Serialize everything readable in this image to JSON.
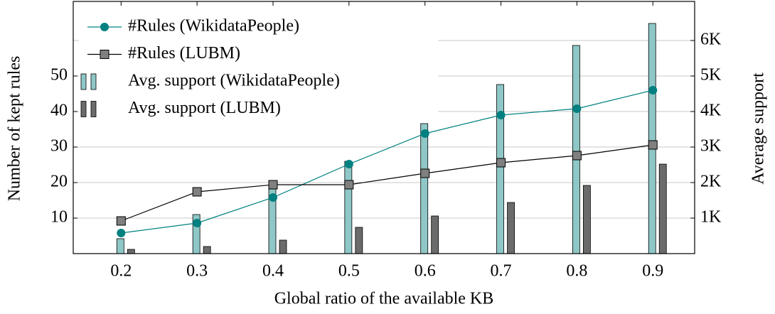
{
  "chart_data": {
    "type": "combo",
    "xlabel": "Global ratio of the available KB",
    "ylabel": "Number of kept rules",
    "y2label": "Average support",
    "x": [
      0.2,
      0.3,
      0.4,
      0.5,
      0.6,
      0.7,
      0.8,
      0.9
    ],
    "xlim": [
      0.137,
      0.955
    ],
    "xticks": [
      0.2,
      0.3,
      0.4,
      0.5,
      0.6,
      0.7,
      0.8,
      0.9
    ],
    "ylim": [
      0,
      71
    ],
    "yticks": [
      10,
      20,
      30,
      40,
      50
    ],
    "y2lim": [
      0,
      7100
    ],
    "y2ticks": [
      {
        "value": 1000,
        "label": "1K"
      },
      {
        "value": 2000,
        "label": "2K"
      },
      {
        "value": 3000,
        "label": "3K"
      },
      {
        "value": 4000,
        "label": "4K"
      },
      {
        "value": 5000,
        "label": "5K"
      },
      {
        "value": 6000,
        "label": "6K"
      }
    ],
    "grid": true,
    "legend": "upper left",
    "series": [
      {
        "name": "#Rules (WikidataPeople)",
        "type": "line",
        "marker": "circle",
        "color": "#008080",
        "values": [
          5.8,
          8.6,
          15.8,
          25.2,
          33.8,
          39,
          40.8,
          46
        ]
      },
      {
        "name": "#Rules (LUBM)",
        "type": "line",
        "marker": "square",
        "color": "#000000",
        "marker_color": "#808080",
        "values": [
          9.2,
          17.4,
          19.4,
          19.4,
          22.6,
          25.6,
          27.6,
          30.6
        ]
      },
      {
        "name": "Avg. support (WikidataPeople)",
        "type": "bar",
        "axis": "y2",
        "color": "#8fc7c7",
        "values": [
          420,
          1100,
          1920,
          2600,
          3660,
          4760,
          5860,
          6480
        ]
      },
      {
        "name": "Avg. support (LUBM)",
        "type": "bar",
        "axis": "y2",
        "color": "#6b6b6b",
        "values": [
          120,
          200,
          380,
          740,
          1060,
          1440,
          1920,
          2520
        ]
      }
    ]
  }
}
